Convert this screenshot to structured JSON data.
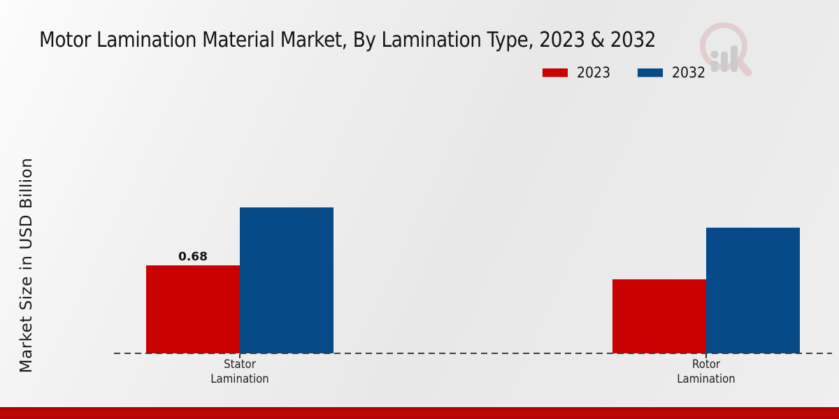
{
  "title": "Motor Lamination Material Market, By Lamination Type, 2023 & 2032",
  "y_axis": {
    "label": "Market Size in USD Billion"
  },
  "legend": {
    "position": "top-right",
    "items": [
      {
        "label": "2023",
        "color": "#c90101"
      },
      {
        "label": "2032",
        "color": "#064a8a"
      }
    ]
  },
  "watermark_icon": "magnifier-bar-chart-logo",
  "chart_data": {
    "type": "bar",
    "title": "Motor Lamination Material Market, By Lamination Type, 2023 & 2032",
    "xlabel": "",
    "ylabel": "Market Size in USD Billion",
    "categories": [
      "Stator Lamination",
      "Rotor Lamination"
    ],
    "category_label_lines": [
      [
        "Stator",
        "Lamination"
      ],
      [
        "Rotor",
        "Lamination"
      ]
    ],
    "series": [
      {
        "name": "2023",
        "color": "#c90101",
        "values": [
          0.68,
          0.57
        ]
      },
      {
        "name": "2032",
        "color": "#064a8a",
        "values": [
          1.13,
          0.97
        ]
      }
    ],
    "data_labels": [
      {
        "series_index": 0,
        "category_index": 0,
        "text": "0.68"
      }
    ],
    "ylim": [
      0,
      1.35
    ],
    "grid": false,
    "baseline_style": "dashed",
    "legend_position": "top-right"
  },
  "colors": {
    "series_2023": "#c90101",
    "series_2032": "#064a8a",
    "footer_bar": "#b50606",
    "baseline_dash": "#3d3d3d",
    "background": "#ebebeb",
    "text": "#1a1a1a"
  }
}
